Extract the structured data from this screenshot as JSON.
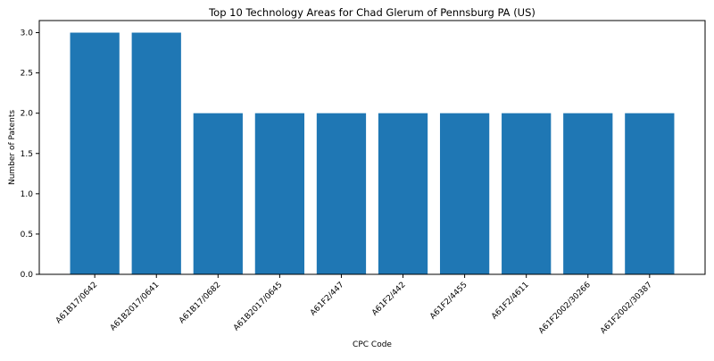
{
  "chart_data": {
    "type": "bar",
    "title": "Top 10 Technology Areas for Chad Glerum of Pennsburg PA (US)",
    "xlabel": "CPC Code",
    "ylabel": "Number of Patents",
    "categories": [
      "A61B17/0642",
      "A61B2017/0641",
      "A61B17/0682",
      "A61B2017/0645",
      "A61F2/447",
      "A61F2/442",
      "A61F2/4455",
      "A61F2/4611",
      "A61F2002/30266",
      "A61F2002/30387"
    ],
    "values": [
      3,
      3,
      2,
      2,
      2,
      2,
      2,
      2,
      2,
      2
    ],
    "ylim": [
      0,
      3.15
    ],
    "yticks": [
      "0.0",
      "0.5",
      "1.0",
      "1.5",
      "2.0",
      "2.5",
      "3.0"
    ],
    "bar_color": "#1f77b4",
    "grid": false,
    "legend": "none"
  }
}
